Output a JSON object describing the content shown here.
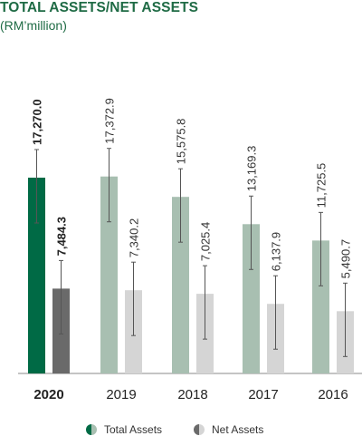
{
  "title": "TOTAL ASSETS/NET ASSETS",
  "subtitle": "(RM’million)",
  "chart_data": {
    "type": "bar",
    "categories": [
      "2020",
      "2019",
      "2018",
      "2017",
      "2016"
    ],
    "highlight_category": "2020",
    "series": [
      {
        "name": "Total Assets",
        "values": [
          17270.0,
          17372.9,
          15575.8,
          13169.3,
          11725.5
        ],
        "labels": [
          "17,270.0",
          "17,372.9",
          "15,575.8",
          "13,169.3",
          "11,725.5"
        ],
        "color_highlight": "#006a45",
        "color": "#a8bfb1"
      },
      {
        "name": "Net Assets",
        "values": [
          7484.3,
          7340.2,
          7025.4,
          6137.9,
          5490.7
        ],
        "labels": [
          "7,484.3",
          "7,340.2",
          "7,025.4",
          "6,137.9",
          "5,490.7"
        ],
        "color_highlight": "#6a6a6a",
        "color": "#d5d5d5"
      }
    ],
    "ylim": [
      0,
      20000
    ],
    "grid": false,
    "legend": "bottom-center",
    "error_bars": true
  }
}
